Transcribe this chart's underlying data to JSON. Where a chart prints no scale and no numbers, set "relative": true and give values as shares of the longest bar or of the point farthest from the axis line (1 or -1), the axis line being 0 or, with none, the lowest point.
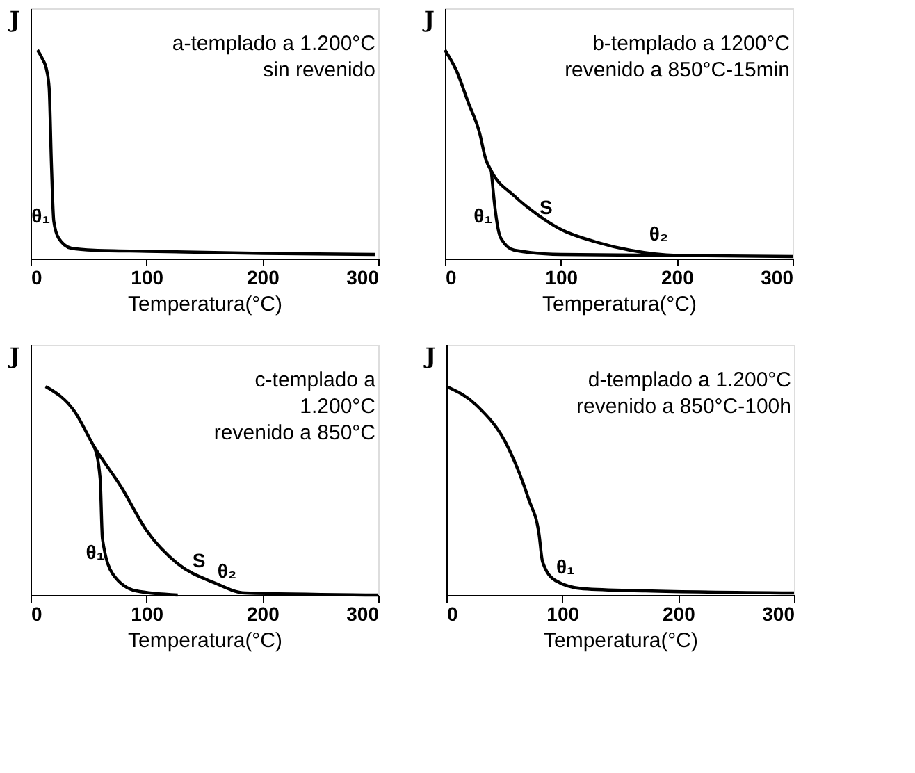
{
  "chart_data": [
    {
      "type": "line",
      "relative": true,
      "ylabel": "J",
      "xlabel": "Temperatura(°C)",
      "xlim": [
        0,
        300
      ],
      "xticks": [
        0,
        100,
        200,
        300
      ],
      "series": [
        {
          "color": "#000000",
          "x": [
            6,
            10,
            14,
            16,
            18,
            20,
            24,
            35,
            55,
            100,
            150,
            200,
            297
          ],
          "values": [
            1,
            0.96,
            0.9,
            0.82,
            0.45,
            0.18,
            0.1,
            0.05,
            0.04,
            0.035,
            0.03,
            0.025,
            0.02
          ]
        }
      ],
      "annotations": [
        "a-templado a 1.200°C",
        "sin revenido",
        {
          "text": "θ₁",
          "x": 24,
          "y": 0.1
        }
      ]
    },
    {
      "type": "line",
      "relative": true,
      "ylabel": "J",
      "xlabel": "Temperatura(°C)",
      "xlim": [
        0,
        300
      ],
      "xticks": [
        0,
        100,
        200,
        300
      ],
      "series": [
        {
          "color": "#000000",
          "x": [
            0,
            10,
            20,
            30,
            35,
            40,
            60,
            80,
            100,
            130,
            160,
            200,
            300
          ],
          "values": [
            1,
            0.9,
            0.75,
            0.6,
            0.48,
            0.42,
            0.3,
            0.21,
            0.14,
            0.08,
            0.04,
            0.015,
            0.01
          ]
        },
        {
          "color": "#000000",
          "x": [
            40,
            43,
            48,
            60,
            100,
            200
          ],
          "values": [
            0.42,
            0.25,
            0.1,
            0.04,
            0.02,
            0.015
          ]
        }
      ],
      "annotations": [
        "b-templado a 1200°C",
        "revenido a 850°C-15min",
        {
          "text": "θ₁",
          "x": 48,
          "y": 0.1
        },
        {
          "text": "S",
          "x": 100,
          "y": 0.14
        },
        {
          "text": "θ₂",
          "x": 200,
          "y": 0.015
        }
      ]
    },
    {
      "type": "line",
      "relative": true,
      "ylabel": "J",
      "xlabel": "Temperatura(°C)",
      "xlim": [
        0,
        300
      ],
      "xticks": [
        0,
        100,
        200,
        300
      ],
      "series": [
        {
          "color": "#000000",
          "x": [
            13,
            38,
            55,
            78,
            100,
            127,
            158,
            185,
            300
          ],
          "values": [
            1,
            0.88,
            0.71,
            0.52,
            0.31,
            0.15,
            0.06,
            0.01,
            0
          ]
        },
        {
          "color": "#000000",
          "x": [
            55,
            60,
            62,
            71,
            91,
            127
          ],
          "values": [
            0.71,
            0.56,
            0.27,
            0.1,
            0.02,
            0
          ]
        }
      ],
      "annotations": [
        "c-templado a",
        "1.200°C",
        "revenido a 850°C",
        {
          "text": "θ₁",
          "x": 71,
          "y": 0.1
        },
        {
          "text": "S",
          "x": 158,
          "y": 0.06
        },
        {
          "text": "θ₂",
          "x": 185,
          "y": 0.01
        }
      ]
    },
    {
      "type": "line",
      "relative": true,
      "ylabel": "J",
      "xlabel": "Temperatura(°C)",
      "xlim": [
        0,
        300
      ],
      "xticks": [
        0,
        100,
        200,
        300
      ],
      "series": [
        {
          "color": "#000000",
          "x": [
            0,
            26,
            54,
            71,
            80,
            83,
            94,
            118,
            172,
            300
          ],
          "values": [
            1,
            0.91,
            0.7,
            0.46,
            0.29,
            0.16,
            0.07,
            0.03,
            0.02,
            0.01
          ]
        }
      ],
      "annotations": [
        "d-templado a 1.200°C",
        "revenido a 850°C-100h",
        {
          "text": "θ₁",
          "x": 118,
          "y": 0.03
        }
      ]
    }
  ]
}
